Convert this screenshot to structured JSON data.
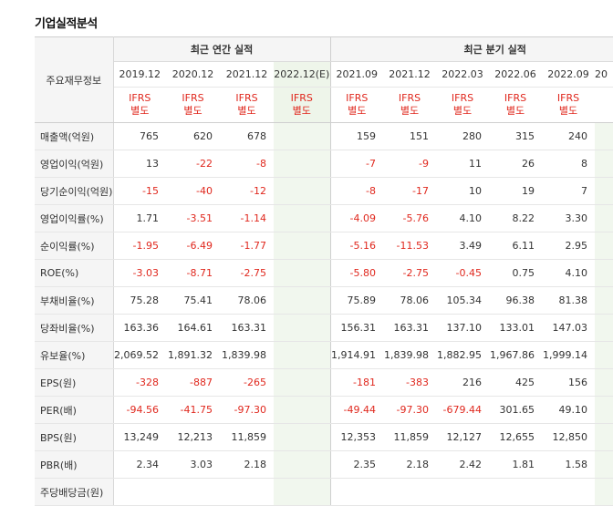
{
  "page_title": "기업실적분석",
  "corner_label": "주요재무정보",
  "groups": {
    "annual": "최근 연간 실적",
    "quarterly": "최근 분기 실적"
  },
  "periods": [
    "2019.12",
    "2020.12",
    "2021.12",
    "2022.12(E)",
    "2021.09",
    "2021.12",
    "2022.03",
    "2022.06",
    "2022.09",
    "20"
  ],
  "basis": {
    "top": "IFRS",
    "bottom": "별도"
  },
  "rows": [
    {
      "label": "매출액(억원)",
      "values": [
        "765",
        "620",
        "678",
        "",
        "159",
        "151",
        "280",
        "315",
        "240",
        ""
      ]
    },
    {
      "label": "영업이익(억원)",
      "values": [
        "13",
        "-22",
        "-8",
        "",
        "-7",
        "-9",
        "11",
        "26",
        "8",
        ""
      ]
    },
    {
      "label": "당기순이익(억원)",
      "values": [
        "-15",
        "-40",
        "-12",
        "",
        "-8",
        "-17",
        "10",
        "19",
        "7",
        ""
      ]
    },
    {
      "label": "영업이익률(%)",
      "values": [
        "1.71",
        "-3.51",
        "-1.14",
        "",
        "-4.09",
        "-5.76",
        "4.10",
        "8.22",
        "3.30",
        ""
      ]
    },
    {
      "label": "순이익률(%)",
      "values": [
        "-1.95",
        "-6.49",
        "-1.77",
        "",
        "-5.16",
        "-11.53",
        "3.49",
        "6.11",
        "2.95",
        ""
      ]
    },
    {
      "label": "ROE(%)",
      "values": [
        "-3.03",
        "-8.71",
        "-2.75",
        "",
        "-5.80",
        "-2.75",
        "-0.45",
        "0.75",
        "4.10",
        ""
      ]
    },
    {
      "label": "부채비율(%)",
      "values": [
        "75.28",
        "75.41",
        "78.06",
        "",
        "75.89",
        "78.06",
        "105.34",
        "96.38",
        "81.38",
        ""
      ]
    },
    {
      "label": "당좌비율(%)",
      "values": [
        "163.36",
        "164.61",
        "163.31",
        "",
        "156.31",
        "163.31",
        "137.10",
        "133.01",
        "147.03",
        ""
      ]
    },
    {
      "label": "유보율(%)",
      "values": [
        "2,069.52",
        "1,891.32",
        "1,839.98",
        "",
        "1,914.91",
        "1,839.98",
        "1,882.95",
        "1,967.86",
        "1,999.14",
        ""
      ]
    },
    {
      "label": "EPS(원)",
      "values": [
        "-328",
        "-887",
        "-265",
        "",
        "-181",
        "-383",
        "216",
        "425",
        "156",
        ""
      ]
    },
    {
      "label": "PER(배)",
      "values": [
        "-94.56",
        "-41.75",
        "-97.30",
        "",
        "-49.44",
        "-97.30",
        "-679.44",
        "301.65",
        "49.10",
        ""
      ]
    },
    {
      "label": "BPS(원)",
      "values": [
        "13,249",
        "12,213",
        "11,859",
        "",
        "12,353",
        "11,859",
        "12,127",
        "12,655",
        "12,850",
        ""
      ]
    },
    {
      "label": "PBR(배)",
      "values": [
        "2.34",
        "3.03",
        "2.18",
        "",
        "2.35",
        "2.18",
        "2.42",
        "1.81",
        "1.58",
        ""
      ]
    },
    {
      "label": "주당배당금(원)",
      "values": [
        "",
        "",
        "",
        "",
        "",
        "",
        "",
        "",
        "",
        ""
      ]
    }
  ]
}
